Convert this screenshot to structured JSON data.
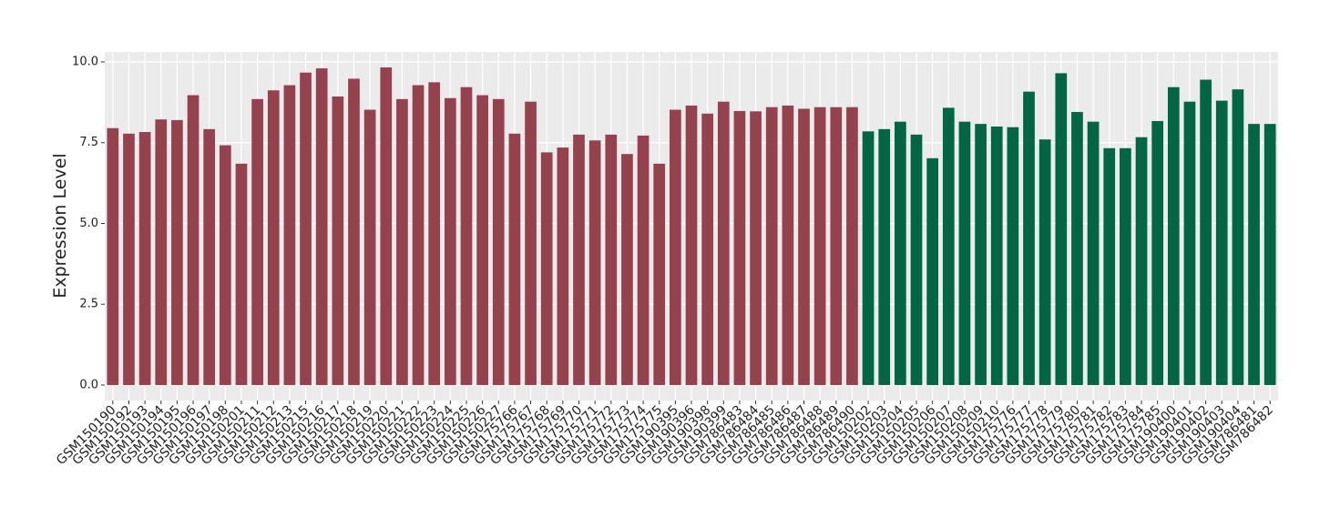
{
  "chart_data": {
    "type": "bar",
    "y_label": "Expression Level",
    "categories": [
      "GSM150190",
      "GSM150192",
      "GSM150193",
      "GSM150194",
      "GSM150195",
      "GSM150196",
      "GSM150197",
      "GSM150198",
      "GSM150201",
      "GSM150211",
      "GSM150212",
      "GSM150213",
      "GSM150215",
      "GSM150216",
      "GSM150217",
      "GSM150218",
      "GSM150219",
      "GSM150220",
      "GSM150221",
      "GSM150222",
      "GSM150223",
      "GSM150224",
      "GSM150225",
      "GSM150226",
      "GSM150227",
      "GSM175766",
      "GSM175767",
      "GSM175768",
      "GSM175769",
      "GSM175770",
      "GSM175771",
      "GSM175772",
      "GSM175773",
      "GSM175774",
      "GSM175775",
      "GSM190395",
      "GSM190396",
      "GSM190398",
      "GSM190399",
      "GSM786483",
      "GSM786484",
      "GSM786485",
      "GSM786486",
      "GSM786487",
      "GSM786488",
      "GSM786489",
      "GSM786490",
      "GSM150202",
      "GSM150203",
      "GSM150204",
      "GSM150205",
      "GSM150206",
      "GSM150207",
      "GSM150208",
      "GSM150209",
      "GSM150210",
      "GSM175776",
      "GSM175777",
      "GSM175778",
      "GSM175779",
      "GSM175780",
      "GSM175781",
      "GSM175782",
      "GSM175783",
      "GSM175784",
      "GSM175785",
      "GSM190400",
      "GSM190401",
      "GSM190402",
      "GSM190403",
      "GSM190404",
      "GSM786481",
      "GSM786482"
    ],
    "values": [
      7.95,
      7.78,
      7.83,
      8.22,
      8.2,
      8.97,
      7.92,
      7.42,
      6.85,
      8.85,
      9.12,
      9.28,
      9.67,
      9.8,
      8.93,
      9.48,
      8.52,
      9.83,
      8.85,
      9.28,
      9.37,
      8.88,
      9.22,
      8.97,
      8.85,
      7.78,
      8.77,
      7.2,
      7.35,
      7.75,
      7.57,
      7.75,
      7.15,
      7.72,
      6.85,
      8.52,
      8.65,
      8.4,
      8.77,
      8.48,
      8.47,
      8.6,
      8.65,
      8.55,
      8.6,
      8.6,
      8.6,
      7.85,
      7.92,
      8.15,
      7.75,
      7.02,
      8.58,
      8.15,
      8.08,
      8.0,
      7.98,
      9.08,
      7.6,
      9.65,
      8.45,
      8.15,
      7.33,
      7.33,
      7.67,
      8.17,
      9.22,
      8.77,
      9.45,
      8.8,
      9.15,
      8.08,
      8.08
    ],
    "colors": [
      "#96424e",
      "#96424e",
      "#96424e",
      "#96424e",
      "#96424e",
      "#96424e",
      "#96424e",
      "#96424e",
      "#96424e",
      "#96424e",
      "#96424e",
      "#96424e",
      "#96424e",
      "#96424e",
      "#96424e",
      "#96424e",
      "#96424e",
      "#96424e",
      "#96424e",
      "#96424e",
      "#96424e",
      "#96424e",
      "#96424e",
      "#96424e",
      "#96424e",
      "#96424e",
      "#96424e",
      "#96424e",
      "#96424e",
      "#96424e",
      "#96424e",
      "#96424e",
      "#96424e",
      "#96424e",
      "#96424e",
      "#96424e",
      "#96424e",
      "#96424e",
      "#96424e",
      "#96424e",
      "#96424e",
      "#96424e",
      "#96424e",
      "#96424e",
      "#96424e",
      "#96424e",
      "#96424e",
      "#006643",
      "#006643",
      "#006643",
      "#006643",
      "#006643",
      "#006643",
      "#006643",
      "#006643",
      "#006643",
      "#006643",
      "#006643",
      "#006643",
      "#006643",
      "#006643",
      "#006643",
      "#006643",
      "#006643",
      "#006643",
      "#006643",
      "#006643",
      "#006643",
      "#006643",
      "#006643",
      "#006643",
      "#006643",
      "#006643"
    ],
    "ylim": [
      -0.48,
      10.31
    ],
    "yticks": [
      {
        "value": 0,
        "label": "0.0"
      },
      {
        "value": 2.5,
        "label": "2.5"
      },
      {
        "value": 5,
        "label": "5.0"
      },
      {
        "value": 7.5,
        "label": "7.5"
      },
      {
        "value": 10,
        "label": "10.0"
      }
    ],
    "grid": true
  }
}
